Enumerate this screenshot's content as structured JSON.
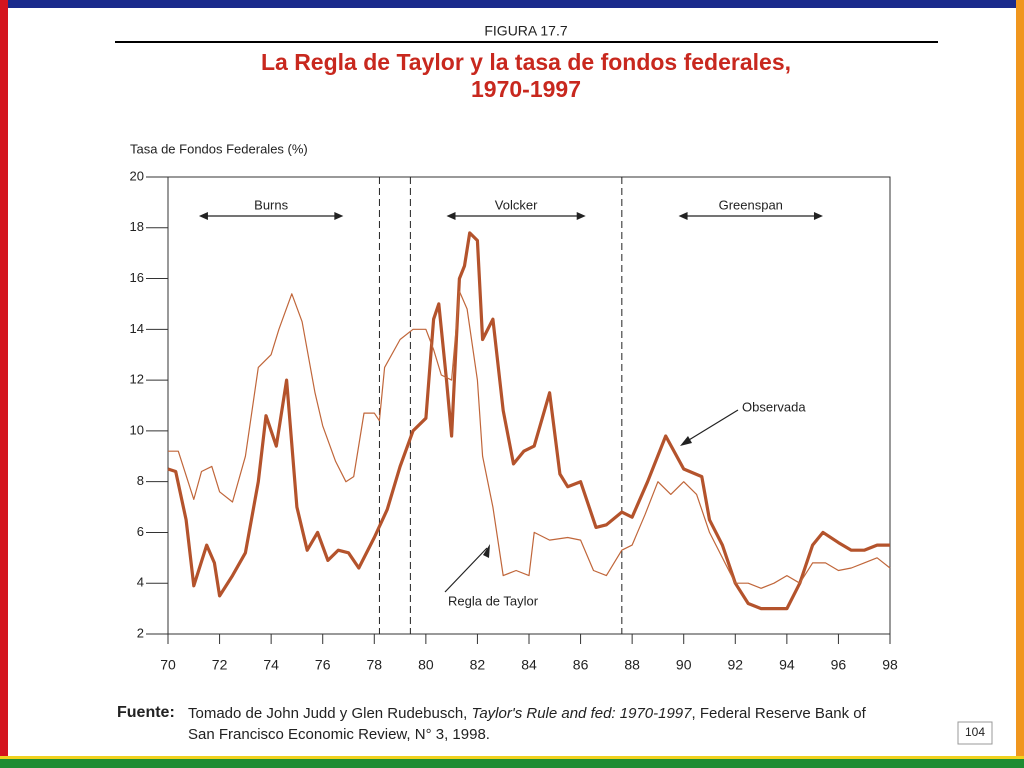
{
  "figure_label": "FIGURA 17.7",
  "page_number": "104",
  "source": {
    "label": "Fuente:",
    "parts": [
      "Tomado de John Judd y Glen Rudebusch,",
      "Taylor's Rule and fed: 1970-1997",
      ", Federal Reserve Bank of",
      "San Francisco Economic Review, N° 3, 1998."
    ]
  },
  "chart_data": {
    "type": "line",
    "title": [
      "La Regla de Taylor y la tasa de fondos federales,",
      "1970-1997"
    ],
    "y_label": "Tasa de Fondos Federales (%)",
    "xlim": [
      70,
      98
    ],
    "xticks": [
      70,
      72,
      74,
      76,
      78,
      80,
      82,
      84,
      86,
      88,
      90,
      92,
      94,
      96,
      98
    ],
    "ylim": [
      2,
      20
    ],
    "yticks": [
      2,
      4,
      6,
      8,
      10,
      12,
      14,
      16,
      18,
      20
    ],
    "period_breaks": [
      78.2,
      79.4,
      87.6
    ],
    "periods": [
      {
        "name": "Burns",
        "span": [
          71.2,
          76.8
        ]
      },
      {
        "name": "Volcker",
        "span": [
          80.8,
          86.2
        ]
      },
      {
        "name": "Greenspan",
        "span": [
          89.8,
          95.4
        ]
      }
    ],
    "series": [
      {
        "name": "Observada",
        "color": "#b4532c",
        "width": 3.2,
        "x": [
          70,
          70.3,
          70.7,
          71,
          71.5,
          71.8,
          72,
          72.5,
          73,
          73.5,
          73.8,
          74.2,
          74.6,
          75,
          75.4,
          75.8,
          76.2,
          76.6,
          77,
          77.4,
          78,
          78.5,
          79,
          79.5,
          80,
          80.3,
          80.5,
          80.8,
          81,
          81.3,
          81.5,
          81.7,
          82,
          82.2,
          82.6,
          83,
          83.4,
          83.8,
          84.2,
          84.8,
          85.2,
          85.5,
          86,
          86.6,
          87,
          87.6,
          88,
          88.6,
          89.3,
          90,
          90.7,
          91,
          91.5,
          92,
          92.5,
          93,
          94,
          94.5,
          95,
          95.4,
          96,
          96.5,
          97,
          97.5,
          98
        ],
        "values": [
          8.5,
          8.4,
          6.5,
          3.9,
          5.5,
          4.8,
          3.5,
          4.3,
          5.2,
          8,
          10.6,
          9.4,
          12,
          7,
          5.3,
          6,
          4.9,
          5.3,
          5.2,
          4.6,
          5.8,
          6.9,
          8.6,
          10,
          10.5,
          14.4,
          15,
          12,
          9.8,
          16,
          16.5,
          17.8,
          17.5,
          13.6,
          14.4,
          10.8,
          8.7,
          9.2,
          9.4,
          11.5,
          8.3,
          7.8,
          8,
          6.2,
          6.3,
          6.8,
          6.6,
          8,
          9.8,
          8.5,
          8.2,
          6.5,
          5.5,
          4,
          3.2,
          3,
          3,
          4,
          5.5,
          6,
          5.6,
          5.3,
          5.3,
          5.5,
          5.5
        ]
      },
      {
        "name": "Regla de Taylor",
        "color": "#c0663a",
        "width": 1.2,
        "x": [
          70,
          70.4,
          71,
          71.3,
          71.7,
          72,
          72.5,
          73,
          73.5,
          74,
          74.3,
          74.8,
          75.2,
          75.7,
          76,
          76.5,
          76.9,
          77.2,
          77.6,
          78,
          78.2,
          78.4,
          79,
          79.5,
          80,
          80.3,
          80.6,
          81,
          81.3,
          81.6,
          82,
          82.2,
          82.6,
          83,
          83.5,
          84,
          84.2,
          84.8,
          85.5,
          86,
          86.5,
          87,
          87.6,
          88,
          88.5,
          89,
          89.5,
          90,
          90.5,
          91,
          92,
          92.5,
          93,
          93.5,
          94,
          94.5,
          95,
          95.5,
          96,
          96.5,
          97,
          97.5,
          98
        ],
        "values": [
          9.2,
          9.2,
          7.3,
          8.4,
          8.6,
          7.6,
          7.2,
          9,
          12.5,
          13,
          14,
          15.4,
          14.3,
          11.5,
          10.2,
          8.8,
          8,
          8.2,
          10.7,
          10.7,
          10.4,
          12.5,
          13.6,
          14,
          14,
          13.2,
          12.2,
          12,
          15.5,
          14.8,
          12,
          9,
          7,
          4.3,
          4.5,
          4.3,
          6,
          5.7,
          5.8,
          5.7,
          4.5,
          4.3,
          5.3,
          5.5,
          6.7,
          8,
          7.5,
          8,
          7.5,
          6,
          4,
          4,
          3.8,
          4,
          4.3,
          4,
          4.8,
          4.8,
          4.5,
          4.6,
          4.8,
          5,
          4.6
        ]
      }
    ]
  }
}
